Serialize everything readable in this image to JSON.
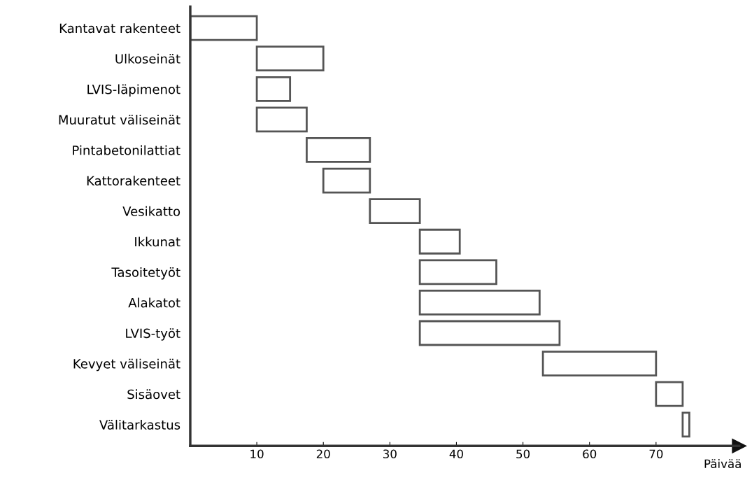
{
  "chart_data": {
    "type": "bar",
    "orientation": "horizontal",
    "xlabel": "Päivää",
    "categories": [
      "Kantavat rakenteet",
      "Ulkoseinät",
      "LVIS-läpimenot",
      "Muuratut väliseinät",
      "Pintabetonilattiat",
      "Kattorakenteet",
      "Vesikatto",
      "Ikkunat",
      "Tasoitetyöt",
      "Alakatot",
      "LVIS-työt",
      "Kevyet väliseinät",
      "Sisäovet",
      "Välitarkastus"
    ],
    "base": [
      0,
      10,
      10,
      10,
      17.5,
      20,
      27,
      34.5,
      34.5,
      34.5,
      34.5,
      53,
      70,
      74
    ],
    "values": [
      10,
      10,
      5,
      7.5,
      9.5,
      7,
      7.5,
      6,
      11.5,
      18,
      21,
      17,
      4,
      1
    ],
    "color": "#ffffff",
    "xlim": [
      0,
      82.5
    ],
    "xticks": [
      10,
      20,
      30,
      40,
      50,
      60,
      70
    ],
    "grid": false,
    "legend": false
  }
}
